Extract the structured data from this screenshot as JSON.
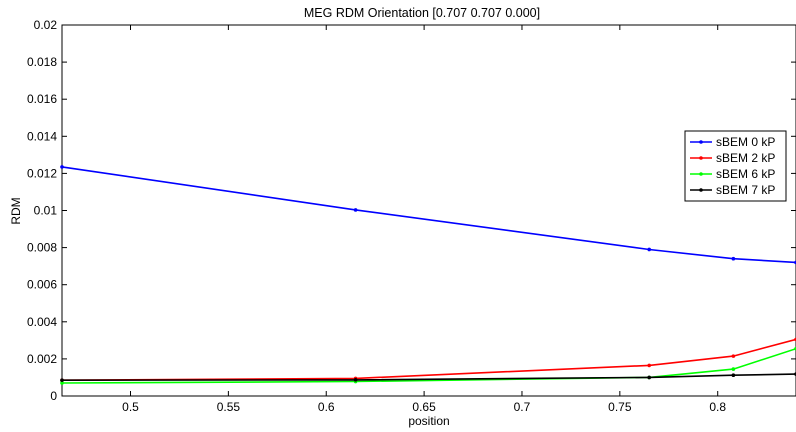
{
  "chart_data": {
    "type": "line",
    "title": "MEG RDM Orientation [0.707 0.707 0.000]",
    "xlabel": "position",
    "ylabel": "RDM",
    "xlim": [
      0.465,
      0.84
    ],
    "ylim": [
      0,
      0.02
    ],
    "xticks": [
      0.5,
      0.55,
      0.6,
      0.65,
      0.7,
      0.75,
      0.8
    ],
    "xtick_labels": [
      "0.5",
      "0.55",
      "0.6",
      "0.65",
      "0.7",
      "0.75",
      "0.8"
    ],
    "yticks": [
      0,
      0.002,
      0.004,
      0.006,
      0.008,
      0.01,
      0.012,
      0.014,
      0.016,
      0.018,
      0.02
    ],
    "ytick_labels": [
      "0",
      "0.002",
      "0.004",
      "0.006",
      "0.008",
      "0.01",
      "0.012",
      "0.014",
      "0.016",
      "0.018",
      "0.02"
    ],
    "grid": false,
    "legend_position": "right",
    "series": [
      {
        "name": "sBEM 0 kP",
        "color": "#0000ff",
        "x": [
          0.465,
          0.615,
          0.765,
          0.808,
          0.84
        ],
        "y": [
          0.01235,
          0.01003,
          0.0079,
          0.0074,
          0.0072
        ]
      },
      {
        "name": "sBEM 2 kP",
        "color": "#ff0000",
        "x": [
          0.465,
          0.615,
          0.765,
          0.808,
          0.84
        ],
        "y": [
          0.00085,
          0.00095,
          0.00165,
          0.00215,
          0.00305
        ]
      },
      {
        "name": "sBEM 6 kP",
        "color": "#00ff00",
        "x": [
          0.465,
          0.615,
          0.765,
          0.808,
          0.84
        ],
        "y": [
          0.0007,
          0.00078,
          0.001,
          0.00145,
          0.00255
        ]
      },
      {
        "name": "sBEM 7 kP",
        "color": "#000000",
        "x": [
          0.465,
          0.615,
          0.765,
          0.808,
          0.84
        ],
        "y": [
          0.00085,
          0.00087,
          0.001,
          0.00112,
          0.00118
        ]
      }
    ]
  }
}
